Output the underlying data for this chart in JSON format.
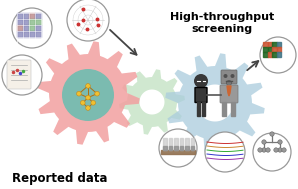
{
  "title_left": "Reported data",
  "title_right": "High-throughput\nscreening",
  "bg_color": "#ffffff",
  "gear_left_color": "#f2a0a0",
  "gear_right_color": "#aaccdd",
  "gear_back_color": "#b8ddb8",
  "arrow_color": "#555555",
  "figsize": [
    2.98,
    1.89
  ],
  "dpi": 100
}
